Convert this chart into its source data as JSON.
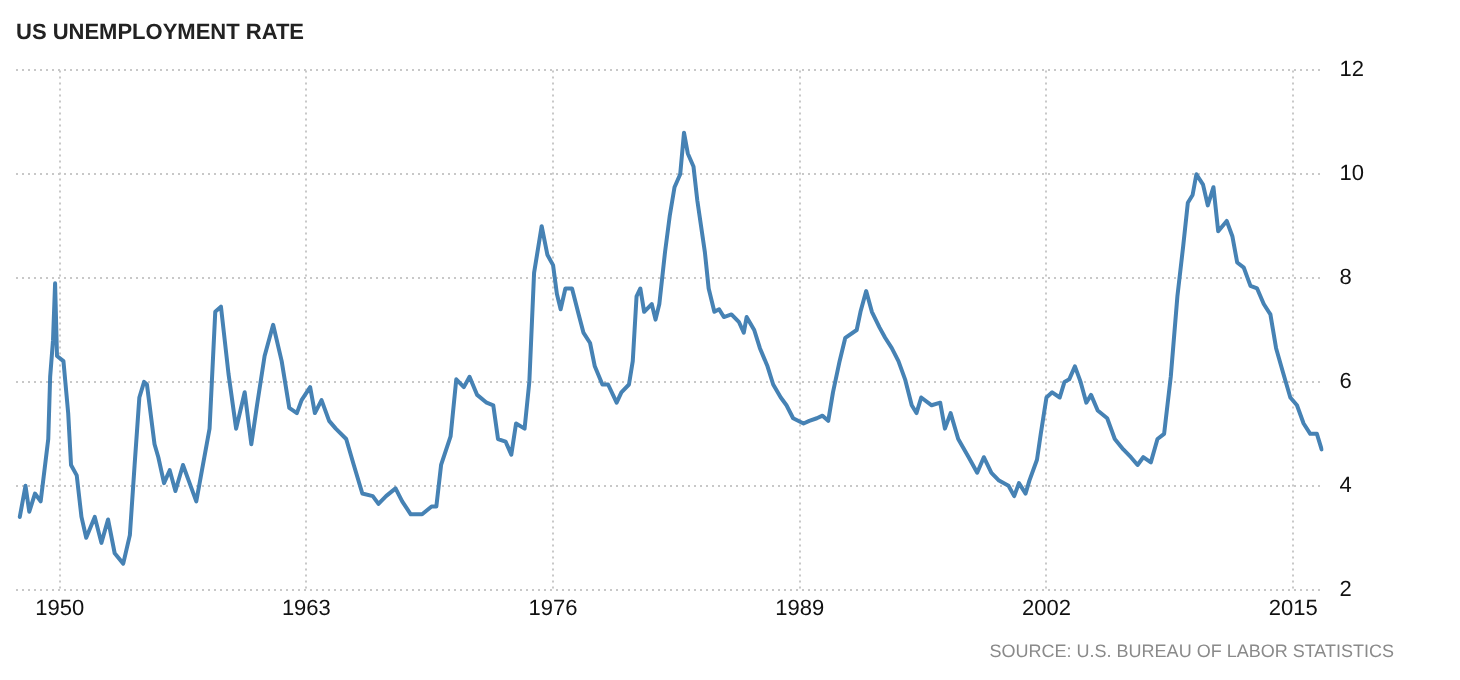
{
  "chart_data": {
    "type": "line",
    "title": "US UNEMPLOYMENT RATE",
    "annotations": [
      "SOURCE: U.S. BUREAU OF LABOR STATISTICS"
    ],
    "x": [
      1947.9,
      1948.2,
      1948.4,
      1948.7,
      1949.0,
      1949.4,
      1949.5,
      1949.65,
      1949.76,
      1949.86,
      1950.2,
      1950.45,
      1950.6,
      1950.9,
      1951.15,
      1951.4,
      1951.85,
      1952.2,
      1952.55,
      1952.9,
      1953.35,
      1953.7,
      1953.95,
      1954.2,
      1954.45,
      1954.6,
      1955.0,
      1955.2,
      1955.5,
      1955.8,
      1956.1,
      1956.5,
      1956.8,
      1957.2,
      1957.5,
      1957.9,
      1958.2,
      1958.5,
      1958.9,
      1959.3,
      1959.75,
      1960.1,
      1960.4,
      1960.8,
      1961.25,
      1961.7,
      1962.1,
      1962.5,
      1962.75,
      1963.2,
      1963.45,
      1963.8,
      1964.2,
      1964.55,
      1965.1,
      1965.5,
      1965.95,
      1966.5,
      1966.8,
      1967.2,
      1967.7,
      1968.05,
      1968.5,
      1969.1,
      1969.6,
      1969.85,
      1970.1,
      1970.6,
      1970.9,
      1971.3,
      1971.6,
      1972.0,
      1972.5,
      1972.85,
      1973.1,
      1973.5,
      1973.8,
      1974.05,
      1974.5,
      1974.75,
      1975.0,
      1975.4,
      1975.7,
      1976.0,
      1976.2,
      1976.4,
      1976.65,
      1977.0,
      1977.35,
      1977.6,
      1977.95,
      1978.2,
      1978.6,
      1978.9,
      1979.35,
      1979.6,
      1980.0,
      1980.2,
      1980.4,
      1980.6,
      1980.8,
      1981.2,
      1981.4,
      1981.6,
      1981.9,
      1982.15,
      1982.4,
      1982.7,
      1982.9,
      1983.1,
      1983.4,
      1983.6,
      1984.0,
      1984.2,
      1984.5,
      1984.75,
      1985.0,
      1985.4,
      1985.8,
      1986.05,
      1986.2,
      1986.6,
      1986.9,
      1987.3,
      1987.6,
      1988.0,
      1988.3,
      1988.65,
      1989.2,
      1989.5,
      1989.9,
      1990.2,
      1990.5,
      1990.75,
      1991.1,
      1991.4,
      1992.0,
      1992.2,
      1992.5,
      1992.8,
      1993.2,
      1993.5,
      1993.85,
      1994.2,
      1994.55,
      1994.9,
      1995.15,
      1995.4,
      1995.95,
      1996.4,
      1996.65,
      1996.95,
      1997.35,
      1997.9,
      1998.35,
      1998.7,
      1999.1,
      1999.5,
      2000.0,
      2000.3,
      2000.55,
      2000.9,
      2001.1,
      2001.5,
      2001.7,
      2002.0,
      2002.3,
      2002.7,
      2002.95,
      2003.2,
      2003.5,
      2003.8,
      2004.1,
      2004.35,
      2004.7,
      2005.2,
      2005.6,
      2006.05,
      2006.45,
      2006.8,
      2007.1,
      2007.5,
      2007.85,
      2008.2,
      2008.55,
      2008.9,
      2009.2,
      2009.45,
      2009.7,
      2009.9,
      2010.25,
      2010.5,
      2010.8,
      2011.05,
      2011.5,
      2011.8,
      2012.05,
      2012.4,
      2012.75,
      2013.1,
      2013.45,
      2013.8,
      2014.1,
      2014.45,
      2014.85,
      2015.2,
      2015.55,
      2015.9,
      2016.25,
      2016.5
    ],
    "series": [
      {
        "color": "#4682b4",
        "values": [
          3.4,
          4.0,
          3.5,
          3.85,
          3.7,
          4.9,
          6.1,
          6.8,
          7.9,
          6.5,
          6.4,
          5.4,
          4.4,
          4.2,
          3.4,
          3.0,
          3.4,
          2.9,
          3.35,
          2.7,
          2.5,
          3.05,
          4.4,
          5.7,
          6.0,
          5.95,
          4.8,
          4.55,
          4.05,
          4.3,
          3.9,
          4.4,
          4.1,
          3.7,
          4.3,
          5.1,
          7.35,
          7.45,
          6.15,
          5.1,
          5.8,
          4.8,
          5.55,
          6.5,
          7.1,
          6.4,
          5.5,
          5.4,
          5.65,
          5.9,
          5.4,
          5.65,
          5.25,
          5.1,
          4.9,
          4.4,
          3.85,
          3.8,
          3.65,
          3.8,
          3.95,
          3.7,
          3.45,
          3.45,
          3.6,
          3.6,
          4.4,
          4.95,
          6.05,
          5.9,
          6.1,
          5.75,
          5.6,
          5.55,
          4.9,
          4.85,
          4.6,
          5.2,
          5.1,
          6.0,
          8.1,
          9.0,
          8.45,
          8.25,
          7.7,
          7.4,
          7.8,
          7.8,
          7.3,
          6.95,
          6.75,
          6.3,
          5.95,
          5.95,
          5.6,
          5.8,
          5.95,
          6.4,
          7.65,
          7.8,
          7.35,
          7.5,
          7.2,
          7.5,
          8.5,
          9.2,
          9.75,
          10.0,
          10.8,
          10.4,
          10.15,
          9.5,
          8.5,
          7.8,
          7.35,
          7.4,
          7.25,
          7.3,
          7.15,
          6.95,
          7.25,
          7.0,
          6.65,
          6.3,
          5.95,
          5.7,
          5.55,
          5.3,
          5.2,
          5.25,
          5.3,
          5.35,
          5.25,
          5.8,
          6.4,
          6.85,
          7.0,
          7.35,
          7.75,
          7.35,
          7.05,
          6.85,
          6.65,
          6.4,
          6.05,
          5.55,
          5.4,
          5.7,
          5.55,
          5.6,
          5.1,
          5.4,
          4.9,
          4.55,
          4.25,
          4.55,
          4.25,
          4.1,
          4.0,
          3.8,
          4.05,
          3.85,
          4.1,
          4.5,
          5.0,
          5.7,
          5.8,
          5.7,
          6.0,
          6.05,
          6.3,
          6.0,
          5.6,
          5.75,
          5.45,
          5.3,
          4.9,
          4.7,
          4.55,
          4.4,
          4.55,
          4.45,
          4.9,
          5.0,
          6.1,
          7.65,
          8.6,
          9.45,
          9.6,
          10.0,
          9.8,
          9.4,
          9.75,
          8.9,
          9.1,
          8.8,
          8.3,
          8.2,
          7.85,
          7.8,
          7.5,
          7.3,
          6.65,
          6.2,
          5.7,
          5.55,
          5.2,
          5.0,
          5.0,
          4.7
        ]
      }
    ],
    "xlim": [
      1947.7,
      2016.6
    ],
    "xticks": [
      1950,
      1963,
      1976,
      1989,
      2002,
      2015
    ],
    "ylim": [
      2,
      12
    ],
    "yticks": [
      2,
      4,
      6,
      8,
      10,
      12
    ],
    "grid": true,
    "legend": false,
    "marker": "none",
    "line_style": "solid"
  }
}
